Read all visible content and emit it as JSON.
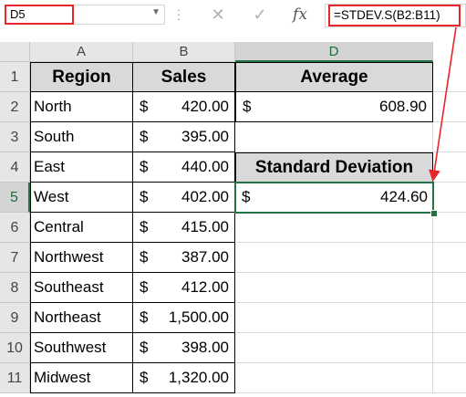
{
  "name_box": {
    "value": "D5"
  },
  "formula_bar": {
    "cancel_icon": "cancel-icon",
    "enter_icon": "enter-icon",
    "insert_function_label": "fx",
    "formula": "=STDEV.S(B2:B11)"
  },
  "columns": [
    "A",
    "B",
    "D"
  ],
  "rows": [
    "1",
    "2",
    "3",
    "4",
    "5",
    "6",
    "7",
    "8",
    "9",
    "10",
    "11"
  ],
  "table": {
    "headers": {
      "region": "Region",
      "sales": "Sales"
    },
    "currency": "$",
    "items": [
      {
        "region": "North",
        "sales": "420.00"
      },
      {
        "region": "South",
        "sales": "395.00"
      },
      {
        "region": "East",
        "sales": "440.00"
      },
      {
        "region": "West",
        "sales": "402.00"
      },
      {
        "region": "Central",
        "sales": "415.00"
      },
      {
        "region": "Northwest",
        "sales": "387.00"
      },
      {
        "region": "Southeast",
        "sales": "412.00"
      },
      {
        "region": "Northeast",
        "sales": "1,500.00"
      },
      {
        "region": "Southwest",
        "sales": "398.00"
      },
      {
        "region": "Midwest",
        "sales": "1,320.00"
      }
    ]
  },
  "average": {
    "label": "Average",
    "currency": "$",
    "value": "608.90"
  },
  "std_dev": {
    "label": "Standard Deviation",
    "currency": "$",
    "value": "424.60"
  },
  "colors": {
    "highlight": "#e8252a",
    "selection": "#217346",
    "header_fill": "#d9d9d9"
  }
}
